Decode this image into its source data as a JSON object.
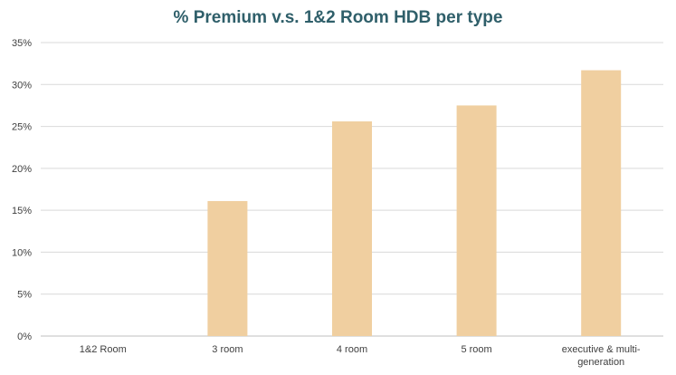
{
  "chart_data": {
    "type": "bar",
    "title": "% Premium v.s. 1&2 Room HDB per type",
    "xlabel": "",
    "ylabel": "",
    "categories": [
      "1&2 Room",
      "3 room",
      "4 room",
      "5 room",
      "executive & multi-generation"
    ],
    "category_lines": [
      [
        "1&2 Room"
      ],
      [
        "3 room"
      ],
      [
        "4 room"
      ],
      [
        "5 room"
      ],
      [
        "executive & multi-",
        "generation"
      ]
    ],
    "values": [
      0,
      16.1,
      25.6,
      27.5,
      31.7
    ],
    "ylim": [
      0,
      35
    ],
    "yticks": [
      0,
      5,
      10,
      15,
      20,
      25,
      30,
      35
    ],
    "ytick_labels": [
      "0%",
      "5%",
      "10%",
      "15%",
      "20%",
      "25%",
      "30%",
      "35%"
    ],
    "grid": true,
    "legend": "none",
    "colors": {
      "bar": "#f0cfa0",
      "grid": "#d9d9d9",
      "title": "#2f5f6a",
      "text": "#404040"
    }
  }
}
